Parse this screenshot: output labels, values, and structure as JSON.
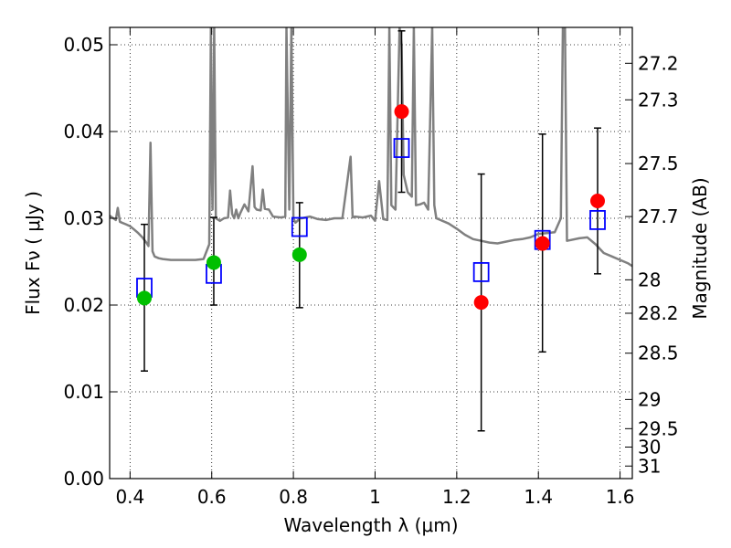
{
  "chart_data": {
    "type": "scatter",
    "title": "",
    "xlabel": "Wavelength  λ (μm)",
    "ylabel": "Flux  Fν  ( μJy )",
    "ylabel_right": "Magnitude (AB)",
    "xlim": [
      0.35,
      1.63
    ],
    "ylim": [
      0.0,
      0.052
    ],
    "grid": true,
    "x_ticks": [
      {
        "value": 0.4,
        "label": "0.4"
      },
      {
        "value": 0.6,
        "label": "0.6"
      },
      {
        "value": 0.8,
        "label": "0.8"
      },
      {
        "value": 1.0,
        "label": "1"
      },
      {
        "value": 1.2,
        "label": "1.2"
      },
      {
        "value": 1.4,
        "label": "1.4"
      },
      {
        "value": 1.6,
        "label": "1.6"
      }
    ],
    "y_ticks": [
      {
        "value": 0.0,
        "label": "0.00"
      },
      {
        "value": 0.01,
        "label": "0.01"
      },
      {
        "value": 0.02,
        "label": "0.02"
      },
      {
        "value": 0.03,
        "label": "0.03"
      },
      {
        "value": 0.04,
        "label": "0.04"
      },
      {
        "value": 0.05,
        "label": "0.05"
      }
    ],
    "y2_ticks": [
      {
        "value": 27.2,
        "label": "27.2"
      },
      {
        "value": 27.3,
        "label": "27.3"
      },
      {
        "value": 27.5,
        "label": "27.5"
      },
      {
        "value": 27.7,
        "label": "27.7"
      },
      {
        "value": 28.0,
        "label": "28"
      },
      {
        "value": 28.2,
        "label": "28.2"
      },
      {
        "value": 28.5,
        "label": "28.5"
      },
      {
        "value": 29.0,
        "label": "29"
      },
      {
        "value": 29.5,
        "label": "29.5"
      },
      {
        "value": 30.0,
        "label": "30"
      },
      {
        "value": 31.0,
        "label": "31"
      }
    ],
    "series": [
      {
        "kind": "template_spectrum",
        "color": "#808080",
        "x": [
          0.35,
          0.365,
          0.37,
          0.375,
          0.38,
          0.39,
          0.4,
          0.41,
          0.42,
          0.43,
          0.44,
          0.445,
          0.45,
          0.455,
          0.46,
          0.47,
          0.48,
          0.5,
          0.52,
          0.54,
          0.56,
          0.58,
          0.594,
          0.598,
          0.6,
          0.602,
          0.606,
          0.61,
          0.62,
          0.63,
          0.64,
          0.645,
          0.65,
          0.655,
          0.66,
          0.665,
          0.67,
          0.68,
          0.69,
          0.7,
          0.705,
          0.71,
          0.72,
          0.725,
          0.73,
          0.74,
          0.75,
          0.77,
          0.78,
          0.783,
          0.79,
          0.795,
          0.8,
          0.805,
          0.81,
          0.815,
          0.82,
          0.83,
          0.84,
          0.86,
          0.88,
          0.9,
          0.92,
          0.94,
          0.945,
          0.95,
          0.97,
          0.99,
          1.0,
          1.01,
          1.02,
          1.03,
          1.035,
          1.04,
          1.05,
          1.06,
          1.065,
          1.07,
          1.08,
          1.09,
          1.095,
          1.1,
          1.11,
          1.12,
          1.13,
          1.14,
          1.145,
          1.15,
          1.16,
          1.18,
          1.2,
          1.22,
          1.24,
          1.26,
          1.28,
          1.3,
          1.32,
          1.34,
          1.36,
          1.38,
          1.4,
          1.42,
          1.44,
          1.455,
          1.46,
          1.465,
          1.47,
          1.5,
          1.52,
          1.54,
          1.56,
          1.58,
          1.6,
          1.62,
          1.63
        ],
        "y": [
          0.0303,
          0.0298,
          0.0312,
          0.0296,
          0.0295,
          0.0293,
          0.0291,
          0.0287,
          0.0283,
          0.0278,
          0.0272,
          0.0268,
          0.0387,
          0.0262,
          0.0256,
          0.0254,
          0.0253,
          0.0252,
          0.0252,
          0.0252,
          0.0252,
          0.0253,
          0.027,
          0.052,
          0.036,
          0.031,
          0.052,
          0.03,
          0.0297,
          0.03,
          0.0301,
          0.0332,
          0.0305,
          0.03,
          0.031,
          0.03,
          0.0306,
          0.0316,
          0.0308,
          0.036,
          0.0313,
          0.031,
          0.0309,
          0.0333,
          0.0311,
          0.031,
          0.0302,
          0.0301,
          0.0302,
          0.052,
          0.031,
          0.052,
          0.03,
          0.0295,
          0.0297,
          0.03,
          0.03,
          0.0301,
          0.0302,
          0.0299,
          0.0298,
          0.03,
          0.03,
          0.0371,
          0.0301,
          0.0302,
          0.0301,
          0.0303,
          0.0297,
          0.0343,
          0.0299,
          0.0298,
          0.052,
          0.0315,
          0.031,
          0.052,
          0.05,
          0.035,
          0.033,
          0.0325,
          0.052,
          0.0315,
          0.0316,
          0.0318,
          0.031,
          0.052,
          0.0315,
          0.03,
          0.0298,
          0.0294,
          0.0288,
          0.0281,
          0.0276,
          0.0274,
          0.0272,
          0.0271,
          0.0273,
          0.0275,
          0.0276,
          0.0278,
          0.0282,
          0.0283,
          0.0284,
          0.03,
          0.052,
          0.052,
          0.0274,
          0.0277,
          0.0278,
          0.027,
          0.026,
          0.0256,
          0.0252,
          0.0248,
          0.0245
        ]
      },
      {
        "kind": "observed",
        "marker": "circle",
        "color": "#00bf00",
        "points": [
          {
            "x": 0.435,
            "y": 0.0208,
            "yerr_low": 0.0124,
            "yerr_high": 0.0293
          },
          {
            "x": 0.605,
            "y": 0.0249,
            "yerr_low": 0.02,
            "yerr_high": 0.0301
          },
          {
            "x": 0.815,
            "y": 0.0258,
            "yerr_low": 0.0197,
            "yerr_high": 0.0318
          }
        ]
      },
      {
        "kind": "observed",
        "marker": "circle",
        "color": "#ff0000",
        "points": [
          {
            "x": 1.065,
            "y": 0.0423,
            "yerr_low": 0.033,
            "yerr_high": 0.0516
          },
          {
            "x": 1.26,
            "y": 0.0203,
            "yerr_low": 0.0055,
            "yerr_high": 0.0351
          },
          {
            "x": 1.41,
            "y": 0.0271,
            "yerr_low": 0.0146,
            "yerr_high": 0.0397
          },
          {
            "x": 1.545,
            "y": 0.032,
            "yerr_low": 0.0236,
            "yerr_high": 0.0404
          }
        ]
      },
      {
        "kind": "model",
        "marker": "square",
        "color": "#0000ff",
        "points": [
          {
            "x": 0.435,
            "y": 0.022
          },
          {
            "x": 0.605,
            "y": 0.0236
          },
          {
            "x": 0.815,
            "y": 0.029
          },
          {
            "x": 1.065,
            "y": 0.0381
          },
          {
            "x": 1.26,
            "y": 0.0238
          },
          {
            "x": 1.41,
            "y": 0.0275
          },
          {
            "x": 1.545,
            "y": 0.0298
          }
        ]
      }
    ]
  }
}
